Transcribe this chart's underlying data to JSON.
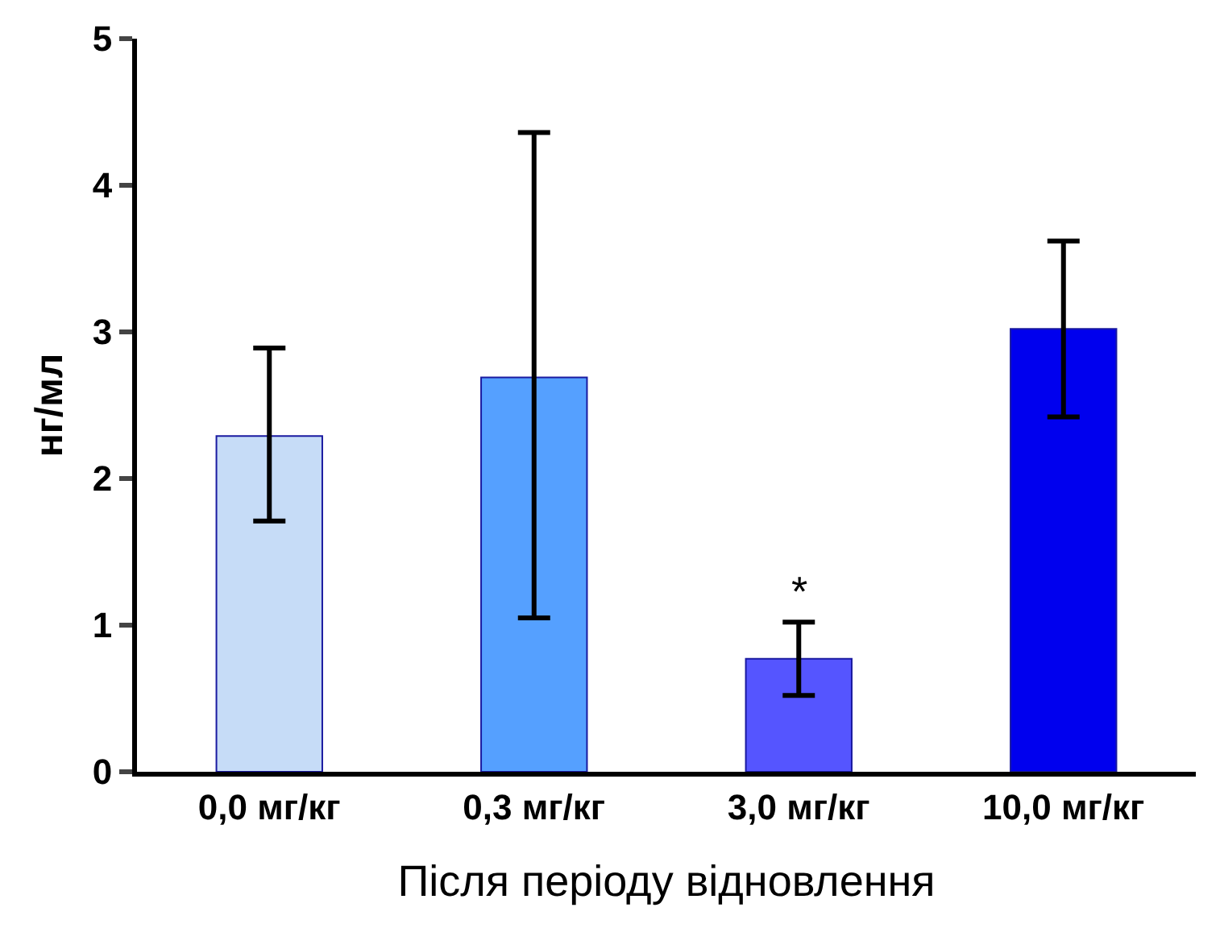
{
  "chart_data": {
    "type": "bar",
    "ylabel": "нг/мл",
    "xlabel": "Після періоду відновлення",
    "categories": [
      "0,0 мг/кг",
      "0,3 мг/кг",
      "3,0 мг/кг",
      "10,0 мг/кг"
    ],
    "values": [
      2.29,
      2.69,
      0.77,
      3.02
    ],
    "colors": [
      "#c6dcf7",
      "#55a0ff",
      "#5555ff",
      "#0000ee"
    ],
    "errors": [
      [
        1.71,
        2.89
      ],
      [
        1.05,
        4.36
      ],
      [
        0.52,
        1.02
      ],
      [
        2.42,
        3.62
      ]
    ],
    "annotations": [
      {
        "text": "*",
        "x": "3,0 мг/кг",
        "y": 1.02
      }
    ],
    "ylim": [
      0,
      5
    ],
    "yticks": [
      0,
      1,
      2,
      3,
      4,
      5
    ],
    "grid": false
  }
}
